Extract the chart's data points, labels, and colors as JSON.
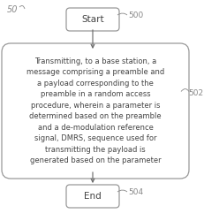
{
  "bg_color": "#ffffff",
  "fig_label": "50",
  "start_label": "500",
  "process_label": "502",
  "end_label": "504",
  "start_text": "Start",
  "end_text": "End",
  "process_text": "Transmitting, to a base station, a\nmessage comprising a preamble and\na payload corresponding to the\npreamble in a random access\nprocedure, wherein a parameter is\ndetermined based on the preamble\nand a de-modulation reference\nsignal, DMRS, sequence used for\ntransmitting the payload is\ngenerated based on the parameter",
  "box_edge_color": "#999999",
  "text_color": "#444444",
  "arrow_color": "#666666",
  "label_color": "#888888",
  "fig_width": 2.32,
  "fig_height": 2.5,
  "dpi": 100
}
